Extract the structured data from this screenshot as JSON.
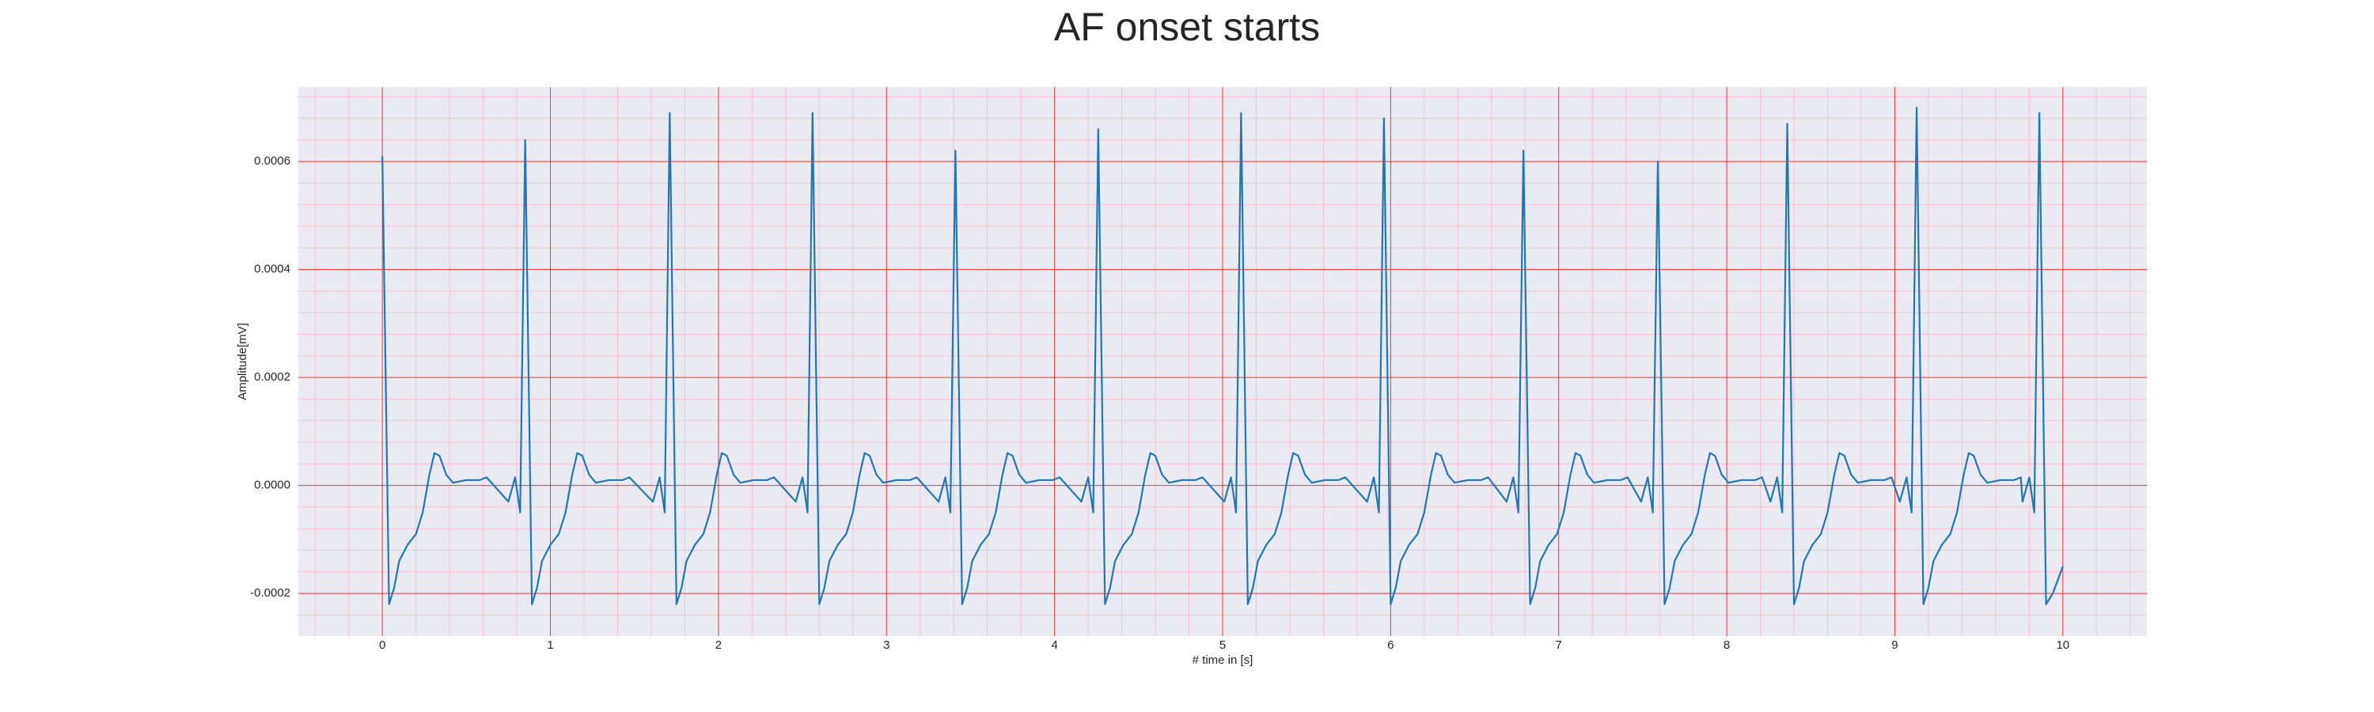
{
  "chart_data": {
    "type": "line",
    "title": "AF onset starts",
    "xlabel": "# time in [s]",
    "ylabel": "Amplitude[mV]",
    "color": "#1f77b4",
    "grid": true,
    "minor_grid": true,
    "xlim": [
      -0.5,
      10.5
    ],
    "ylim": [
      -0.000279,
      0.000738
    ],
    "xticks": [
      0,
      1,
      2,
      3,
      4,
      5,
      6,
      7,
      8,
      9,
      10
    ],
    "yticks": [
      -0.0002,
      {
        "value": 0,
        "label": "0.0000"
      },
      0.0002,
      0.0004,
      0.0006
    ],
    "x": [
      0,
      0.04,
      0.07,
      0.1,
      0.15,
      0.2,
      0.24,
      0.28,
      0.31,
      0.34,
      0.38,
      0.42,
      0.5,
      0.58,
      0.62,
      0.75,
      0.79,
      0.82,
      0.85,
      0.89,
      0.92,
      0.95,
      1.0,
      1.05,
      1.09,
      1.13,
      1.16,
      1.19,
      1.23,
      1.27,
      1.35,
      1.43,
      1.47,
      1.61,
      1.65,
      1.68,
      1.71,
      1.75,
      1.78,
      1.81,
      1.86,
      1.91,
      1.95,
      1.99,
      2.02,
      2.05,
      2.09,
      2.13,
      2.21,
      2.29,
      2.33,
      2.46,
      2.5,
      2.53,
      2.56,
      2.6,
      2.63,
      2.66,
      2.71,
      2.76,
      2.8,
      2.84,
      2.87,
      2.9,
      2.94,
      2.98,
      3.06,
      3.14,
      3.18,
      3.31,
      3.35,
      3.38,
      3.41,
      3.45,
      3.48,
      3.51,
      3.56,
      3.61,
      3.65,
      3.69,
      3.72,
      3.75,
      3.79,
      3.83,
      3.91,
      3.99,
      4.03,
      4.16,
      4.2,
      4.23,
      4.26,
      4.3,
      4.33,
      4.36,
      4.41,
      4.46,
      4.5,
      4.54,
      4.57,
      4.6,
      4.64,
      4.68,
      4.76,
      4.84,
      4.88,
      5.01,
      5.05,
      5.08,
      5.11,
      5.15,
      5.18,
      5.21,
      5.26,
      5.31,
      5.35,
      5.39,
      5.42,
      5.45,
      5.49,
      5.53,
      5.61,
      5.69,
      5.73,
      5.86,
      5.9,
      5.93,
      5.96,
      6.0,
      6.03,
      6.06,
      6.11,
      6.16,
      6.2,
      6.24,
      6.27,
      6.3,
      6.34,
      6.38,
      6.46,
      6.54,
      6.58,
      6.69,
      6.73,
      6.76,
      6.79,
      6.83,
      6.86,
      6.89,
      6.94,
      6.99,
      7.03,
      7.07,
      7.1,
      7.13,
      7.17,
      7.21,
      7.29,
      7.37,
      7.41,
      7.49,
      7.53,
      7.56,
      7.59,
      7.63,
      7.66,
      7.69,
      7.74,
      7.79,
      7.83,
      7.87,
      7.9,
      7.93,
      7.97,
      8.01,
      8.09,
      8.17,
      8.21,
      8.26,
      8.3,
      8.33,
      8.36,
      8.4,
      8.43,
      8.46,
      8.51,
      8.56,
      8.6,
      8.64,
      8.67,
      8.7,
      8.74,
      8.78,
      8.86,
      8.94,
      8.98,
      9.03,
      9.07,
      9.1,
      9.13,
      9.17,
      9.2,
      9.23,
      9.28,
      9.33,
      9.37,
      9.41,
      9.44,
      9.47,
      9.51,
      9.55,
      9.63,
      9.71,
      9.75,
      9.76,
      9.8,
      9.83,
      9.86,
      9.9,
      9.94,
      10.0
    ],
    "values": [
      0.00061,
      -0.00022,
      -0.00019,
      -0.00014,
      -0.00011,
      -9e-05,
      -5e-05,
      2e-05,
      6e-05,
      5.5e-05,
      2e-05,
      5e-06,
      1e-05,
      1e-05,
      1.5e-05,
      -3e-05,
      1.5e-05,
      -5e-05,
      0.00064,
      -0.00022,
      -0.00019,
      -0.00014,
      -0.00011,
      -9e-05,
      -5e-05,
      2e-05,
      6e-05,
      5.5e-05,
      2e-05,
      5e-06,
      1e-05,
      1e-05,
      1.5e-05,
      -3e-05,
      1.5e-05,
      -5e-05,
      0.00069,
      -0.00022,
      -0.00019,
      -0.00014,
      -0.00011,
      -9e-05,
      -5e-05,
      2e-05,
      6e-05,
      5.5e-05,
      2e-05,
      5e-06,
      1e-05,
      1e-05,
      1.5e-05,
      -3e-05,
      1.5e-05,
      -5e-05,
      0.00069,
      -0.00022,
      -0.00019,
      -0.00014,
      -0.00011,
      -9e-05,
      -5e-05,
      2e-05,
      6e-05,
      5.5e-05,
      2e-05,
      5e-06,
      1e-05,
      1e-05,
      1.5e-05,
      -3e-05,
      1.5e-05,
      -5e-05,
      0.00062,
      -0.00022,
      -0.00019,
      -0.00014,
      -0.00011,
      -9e-05,
      -5e-05,
      2e-05,
      6e-05,
      5.5e-05,
      2e-05,
      5e-06,
      1e-05,
      1e-05,
      1.5e-05,
      -3e-05,
      1.5e-05,
      -5e-05,
      0.00066,
      -0.00022,
      -0.00019,
      -0.00014,
      -0.00011,
      -9e-05,
      -5e-05,
      2e-05,
      6e-05,
      5.5e-05,
      2e-05,
      5e-06,
      1e-05,
      1e-05,
      1.5e-05,
      -3e-05,
      1.5e-05,
      -5e-05,
      0.00069,
      -0.00022,
      -0.00019,
      -0.00014,
      -0.00011,
      -9e-05,
      -5e-05,
      2e-05,
      6e-05,
      5.5e-05,
      2e-05,
      5e-06,
      1e-05,
      1e-05,
      1.5e-05,
      -3e-05,
      1.5e-05,
      -5e-05,
      0.00068,
      -0.00022,
      -0.00019,
      -0.00014,
      -0.00011,
      -9e-05,
      -5e-05,
      2e-05,
      6e-05,
      5.5e-05,
      2e-05,
      5e-06,
      1e-05,
      1e-05,
      1.5e-05,
      -3e-05,
      1.5e-05,
      -5e-05,
      0.00062,
      -0.00022,
      -0.00019,
      -0.00014,
      -0.00011,
      -9e-05,
      -5e-05,
      2e-05,
      6e-05,
      5.5e-05,
      2e-05,
      5e-06,
      1e-05,
      1e-05,
      1.5e-05,
      -3e-05,
      1.5e-05,
      -5e-05,
      0.0006,
      -0.00022,
      -0.00019,
      -0.00014,
      -0.00011,
      -9e-05,
      -5e-05,
      2e-05,
      6e-05,
      5.5e-05,
      2e-05,
      5e-06,
      1e-05,
      1e-05,
      1.5e-05,
      -3e-05,
      1.5e-05,
      -5e-05,
      0.00067,
      -0.00022,
      -0.00019,
      -0.00014,
      -0.00011,
      -9e-05,
      -5e-05,
      2e-05,
      6e-05,
      5.5e-05,
      2e-05,
      5e-06,
      1e-05,
      1e-05,
      1.5e-05,
      -3e-05,
      1.5e-05,
      -5e-05,
      0.0007,
      -0.00022,
      -0.00019,
      -0.00014,
      -0.00011,
      -9e-05,
      -5e-05,
      2e-05,
      6e-05,
      5.5e-05,
      2e-05,
      5e-06,
      1e-05,
      1e-05,
      1.5e-05,
      -3e-05,
      1.5e-05,
      -5e-05,
      0.00069,
      -0.00022,
      -0.0002,
      -0.00015
    ]
  }
}
